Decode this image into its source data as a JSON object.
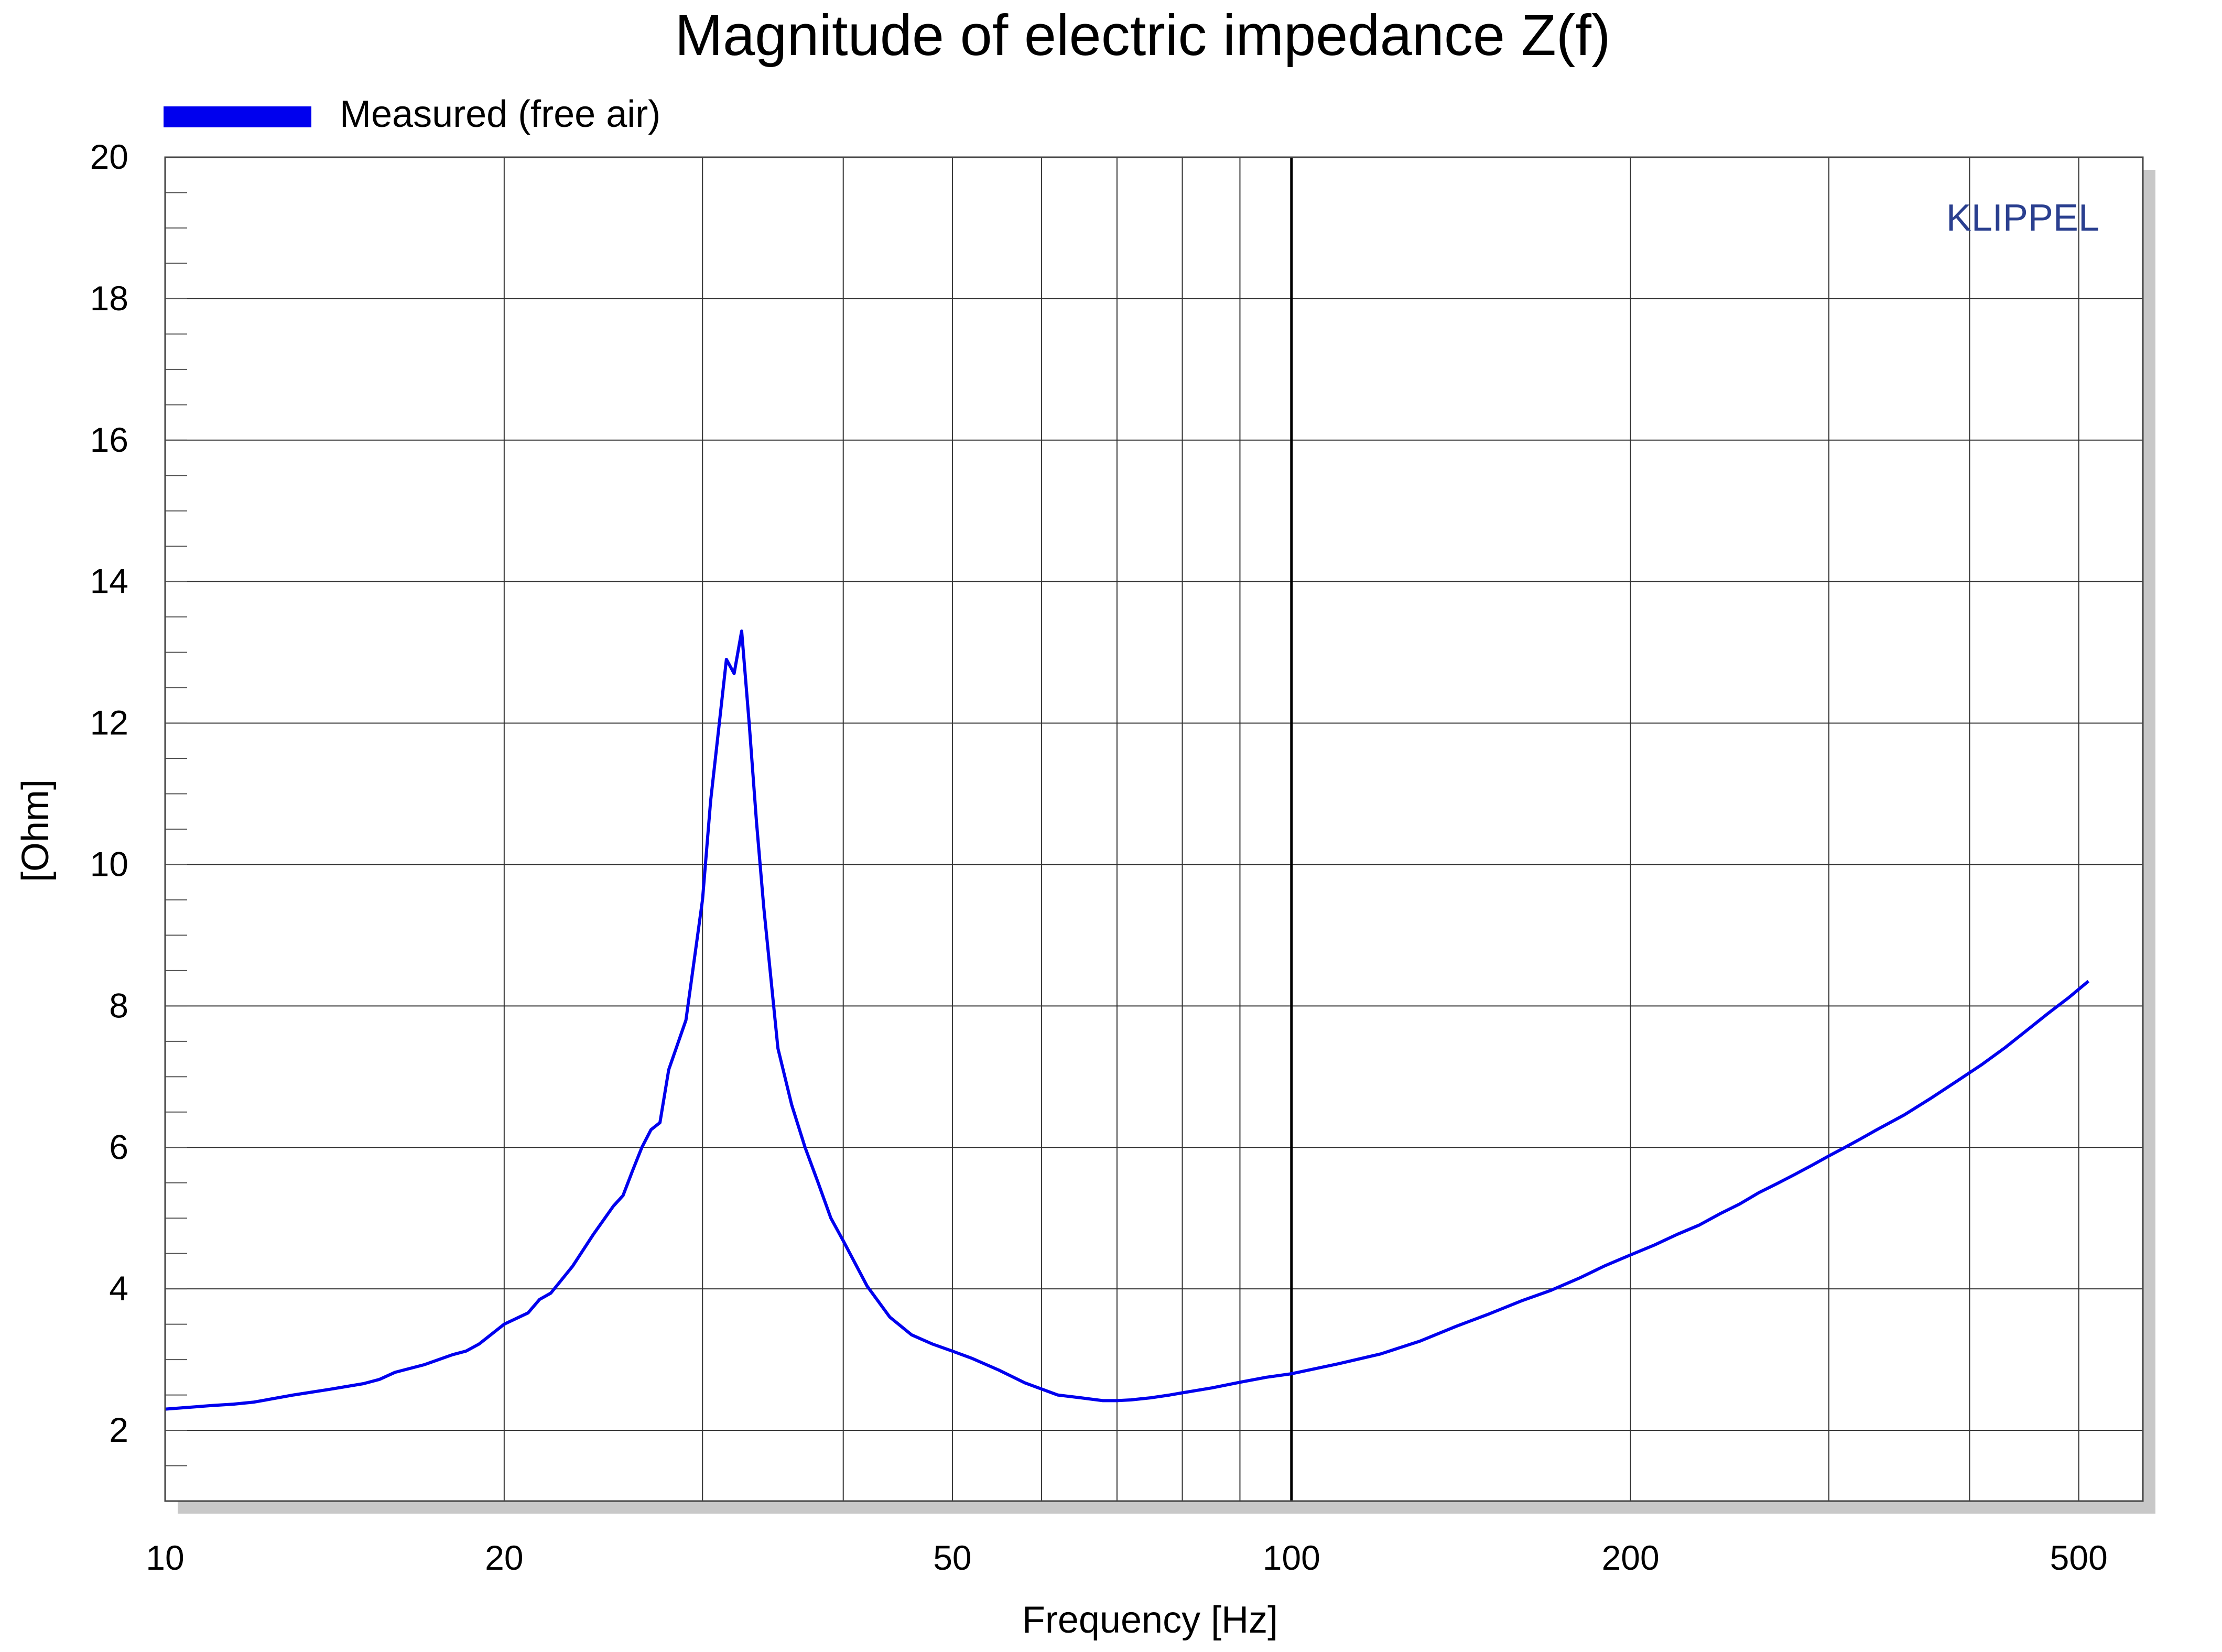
{
  "chart_data": {
    "type": "line",
    "title": "Magnitude of electric impedance Z(f)",
    "xlabel": "Frequency [Hz]",
    "ylabel": "[Ohm]",
    "xscale": "log",
    "xlim": [
      10,
      570
    ],
    "ylim": [
      1,
      20
    ],
    "xticks": [
      10,
      20,
      50,
      100,
      200,
      500
    ],
    "yticks": [
      2,
      4,
      6,
      8,
      10,
      12,
      14,
      16,
      18,
      20
    ],
    "grid": true,
    "legend_position": "top-left",
    "watermark": "KLIPPEL",
    "colors": {
      "series": "#0000ee",
      "brand": "#2a3f8f",
      "grid": "#333333"
    },
    "series": [
      {
        "name": "Measured (free air)",
        "x": [
          10,
          11,
          11.5,
          12,
          13,
          14,
          15,
          15.5,
          16,
          17,
          18,
          18.5,
          19,
          20,
          21,
          21.5,
          22,
          23,
          24,
          25,
          25.5,
          26,
          26.5,
          27,
          27.5,
          28,
          29,
          30,
          30.5,
          31,
          31.5,
          32,
          32.5,
          33,
          33.5,
          34,
          35,
          36,
          37,
          38,
          39,
          40,
          42,
          44,
          46,
          48,
          50,
          52,
          55,
          58,
          62,
          65,
          68,
          70,
          72,
          75,
          78,
          80,
          85,
          90,
          95,
          100,
          110,
          120,
          130,
          140,
          150,
          160,
          170,
          180,
          190,
          200,
          210,
          220,
          230,
          240,
          250,
          260,
          270,
          280,
          290,
          300,
          310,
          320,
          330,
          350,
          370,
          390,
          410,
          430,
          450,
          470,
          490,
          510
        ],
        "y": [
          2.3,
          2.35,
          2.37,
          2.4,
          2.5,
          2.58,
          2.66,
          2.72,
          2.82,
          2.93,
          3.07,
          3.12,
          3.22,
          3.5,
          3.66,
          3.85,
          3.94,
          4.32,
          4.77,
          5.17,
          5.32,
          5.67,
          6.0,
          6.25,
          6.35,
          7.1,
          7.8,
          9.5,
          10.9,
          11.9,
          12.9,
          12.7,
          13.3,
          12.0,
          10.6,
          9.4,
          7.4,
          6.6,
          6.0,
          5.5,
          5.0,
          4.68,
          4.04,
          3.6,
          3.35,
          3.22,
          3.12,
          3.02,
          2.85,
          2.67,
          2.5,
          2.46,
          2.42,
          2.42,
          2.43,
          2.46,
          2.5,
          2.53,
          2.6,
          2.68,
          2.75,
          2.8,
          2.94,
          3.08,
          3.26,
          3.47,
          3.65,
          3.83,
          3.98,
          4.15,
          4.33,
          4.48,
          4.62,
          4.77,
          4.9,
          5.06,
          5.2,
          5.36,
          5.49,
          5.62,
          5.75,
          5.88,
          6.0,
          6.12,
          6.24,
          6.46,
          6.7,
          6.94,
          7.17,
          7.41,
          7.66,
          7.9,
          8.12,
          8.35
        ]
      }
    ]
  }
}
